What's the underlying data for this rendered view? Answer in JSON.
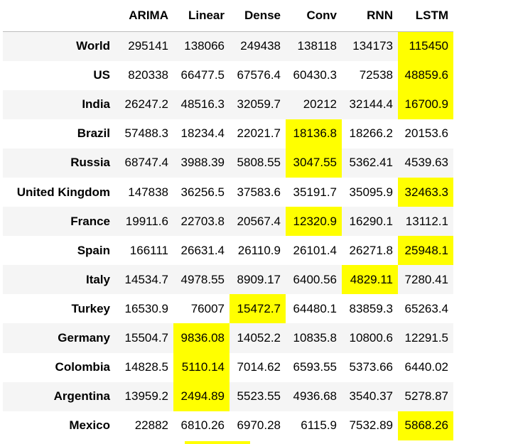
{
  "table": {
    "columns": [
      "",
      "ARIMA",
      "Linear",
      "Dense",
      "Conv",
      "RNN",
      "LSTM"
    ],
    "rows": [
      {
        "label": "World",
        "values": [
          "295141",
          "138066",
          "249438",
          "138118",
          "134173",
          "115450"
        ],
        "best": 5
      },
      {
        "label": "US",
        "values": [
          "820338",
          "66477.5",
          "67576.4",
          "60430.3",
          "72538",
          "48859.6"
        ],
        "best": 5
      },
      {
        "label": "India",
        "values": [
          "26247.2",
          "48516.3",
          "32059.7",
          "20212",
          "32144.4",
          "16700.9"
        ],
        "best": 5
      },
      {
        "label": "Brazil",
        "values": [
          "57488.3",
          "18234.4",
          "22021.7",
          "18136.8",
          "18266.2",
          "20153.6"
        ],
        "best": 3
      },
      {
        "label": "Russia",
        "values": [
          "68747.4",
          "3988.39",
          "5808.55",
          "3047.55",
          "5362.41",
          "4539.63"
        ],
        "best": 3
      },
      {
        "label": "United Kingdom",
        "values": [
          "147838",
          "36256.5",
          "37583.6",
          "35191.7",
          "35095.9",
          "32463.3"
        ],
        "best": 5
      },
      {
        "label": "France",
        "values": [
          "19911.6",
          "22703.8",
          "20567.4",
          "12320.9",
          "16290.1",
          "13112.1"
        ],
        "best": 3
      },
      {
        "label": "Spain",
        "values": [
          "166111",
          "26631.4",
          "26110.9",
          "26101.4",
          "26271.8",
          "25948.1"
        ],
        "best": 5
      },
      {
        "label": "Italy",
        "values": [
          "14534.7",
          "4978.55",
          "8909.17",
          "6400.56",
          "4829.11",
          "7280.41"
        ],
        "best": 4
      },
      {
        "label": "Turkey",
        "values": [
          "16530.9",
          "76007",
          "15472.7",
          "64480.1",
          "83859.3",
          "65263.4"
        ],
        "best": 2
      },
      {
        "label": "Germany",
        "values": [
          "15504.7",
          "9836.08",
          "14052.2",
          "10835.8",
          "10800.6",
          "12291.5"
        ],
        "best": 1
      },
      {
        "label": "Colombia",
        "values": [
          "14828.5",
          "5110.14",
          "7014.62",
          "6593.55",
          "5373.66",
          "6440.02"
        ],
        "best": 1
      },
      {
        "label": "Argentina",
        "values": [
          "13959.2",
          "2494.89",
          "5523.55",
          "4936.68",
          "3540.37",
          "5278.87"
        ],
        "best": 1
      },
      {
        "label": "Mexico",
        "values": [
          "22882",
          "6810.26",
          "6970.28",
          "6115.9",
          "7532.89",
          "5868.26"
        ],
        "best": 5
      }
    ]
  },
  "colors": {
    "highlight": "#ffff00",
    "stripe": "#f5f5f5",
    "background": "#ffffff"
  }
}
